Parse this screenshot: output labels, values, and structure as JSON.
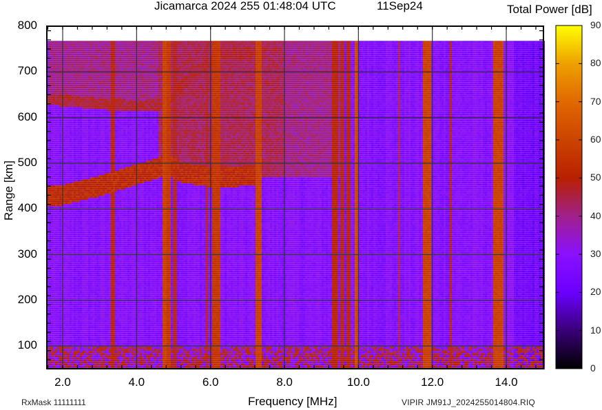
{
  "header": {
    "title": "Jicamarca 2024 255 01:48:04 UTC",
    "date": "11Sep24",
    "colorbar_title": "Total Power [dB]"
  },
  "footer": {
    "rx_mask": "RxMask 11111111",
    "file": "VIPIR  JM91J_2024255014804.RIQ"
  },
  "colors": {
    "background_low": "#8000ff",
    "noise_band": "#b81a10",
    "strong_band": "#d05000",
    "grid": "#333333"
  },
  "chart_data": {
    "type": "heatmap",
    "title": "Jicamarca 2024 255 01:48:04 UTC   11Sep24",
    "xlabel": "Frequency [MHz]",
    "ylabel": "Range [km]",
    "xlim": [
      1.57,
      15.0
    ],
    "ylim": [
      50,
      800
    ],
    "data_ylim": [
      50,
      768
    ],
    "x_ticks": [
      "2.0",
      "4.0",
      "6.0",
      "8.0",
      "10.0",
      "12.0",
      "14.0"
    ],
    "x_tick_values": [
      2,
      4,
      6,
      8,
      10,
      12,
      14
    ],
    "y_ticks": [
      "800",
      "700",
      "600",
      "500",
      "400",
      "300",
      "200",
      "100"
    ],
    "y_tick_values": [
      800,
      700,
      600,
      500,
      400,
      300,
      200,
      100
    ],
    "grid": true,
    "colorbar": {
      "label": "Total Power [dB]",
      "range": [
        0,
        90
      ],
      "ticks": [
        "90",
        "80",
        "70",
        "60",
        "50",
        "40",
        "30",
        "20",
        "10",
        "0"
      ],
      "colormap": [
        {
          "v": 0,
          "c": "#000000"
        },
        {
          "v": 10,
          "c": "#3a0078"
        },
        {
          "v": 20,
          "c": "#6a00ff"
        },
        {
          "v": 30,
          "c": "#8a10ff"
        },
        {
          "v": 40,
          "c": "#a0208a"
        },
        {
          "v": 50,
          "c": "#b82000"
        },
        {
          "v": 60,
          "c": "#cc4400"
        },
        {
          "v": 70,
          "c": "#e06800"
        },
        {
          "v": 80,
          "c": "#eea000"
        },
        {
          "v": 90,
          "c": "#ffff00"
        }
      ]
    },
    "background_level_db": 28,
    "echo_traces": [
      {
        "name": "F-layer trace (lower)",
        "points_mhz_km": [
          [
            1.6,
            430
          ],
          [
            2.0,
            430
          ],
          [
            3.0,
            450
          ],
          [
            4.0,
            475
          ],
          [
            4.6,
            490
          ],
          [
            4.8,
            498
          ],
          [
            5.2,
            480
          ],
          [
            6.0,
            470
          ],
          [
            7.0,
            472
          ],
          [
            7.4,
            475
          ]
        ],
        "thickness_km": 45,
        "level_db": 50
      },
      {
        "name": "Second-hop / diffuse trace",
        "points_mhz_km": [
          [
            1.6,
            640
          ],
          [
            3.0,
            630
          ],
          [
            4.0,
            625
          ],
          [
            4.8,
            630
          ],
          [
            5.6,
            700
          ],
          [
            6.3,
            740
          ],
          [
            7.5,
            740
          ]
        ],
        "thickness_km": 25,
        "level_db": 45
      }
    ],
    "diffuse_region": {
      "x_range_mhz": [
        4.6,
        9.6
      ],
      "y_range_km": [
        480,
        768
      ],
      "level_db": 44
    },
    "upper_diffuse_region": {
      "x_range_mhz": [
        1.6,
        9.6
      ],
      "y_range_km": [
        630,
        768
      ],
      "level_db": 40
    },
    "interference_bands": [
      {
        "f_mhz": 3.35,
        "width_mhz": 0.06,
        "level_db": 50
      },
      {
        "f_mhz": 4.78,
        "width_mhz": 0.08,
        "level_db": 58
      },
      {
        "f_mhz": 4.87,
        "width_mhz": 0.05,
        "level_db": 55
      },
      {
        "f_mhz": 5.05,
        "width_mhz": 0.1,
        "level_db": 48
      },
      {
        "f_mhz": 5.9,
        "width_mhz": 0.05,
        "level_db": 48
      },
      {
        "f_mhz": 6.1,
        "width_mhz": 0.04,
        "level_db": 55
      },
      {
        "f_mhz": 6.22,
        "width_mhz": 0.05,
        "level_db": 55
      },
      {
        "f_mhz": 7.3,
        "width_mhz": 0.12,
        "level_db": 58
      },
      {
        "f_mhz": 9.35,
        "width_mhz": 0.12,
        "level_db": 50
      },
      {
        "f_mhz": 9.55,
        "width_mhz": 0.05,
        "level_db": 48
      },
      {
        "f_mhz": 9.75,
        "width_mhz": 0.08,
        "level_db": 50
      },
      {
        "f_mhz": 9.95,
        "width_mhz": 0.06,
        "level_db": 60
      },
      {
        "f_mhz": 11.1,
        "width_mhz": 0.05,
        "level_db": 44
      },
      {
        "f_mhz": 11.85,
        "width_mhz": 0.2,
        "level_db": 58
      },
      {
        "f_mhz": 12.5,
        "width_mhz": 0.06,
        "level_db": 50
      },
      {
        "f_mhz": 13.8,
        "width_mhz": 0.22,
        "level_db": 58
      }
    ],
    "low_range_clutter": {
      "y_range_km": [
        50,
        98
      ],
      "level_db": 48
    },
    "quiet_region_above_mhz": 14.2
  }
}
